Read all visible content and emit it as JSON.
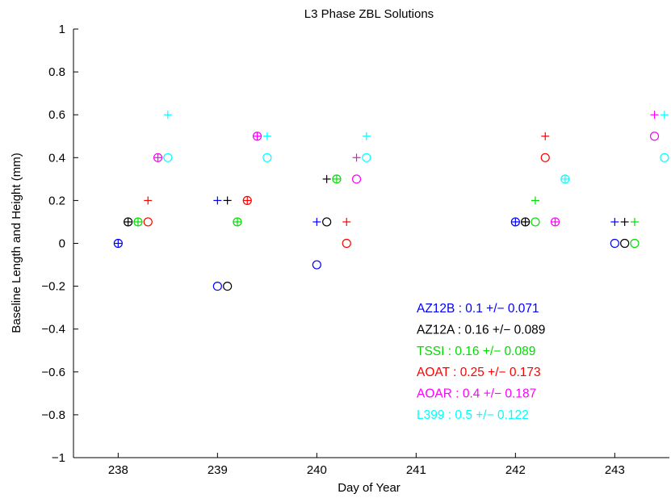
{
  "chart_data": {
    "type": "scatter",
    "title": "L3 Phase ZBL Solutions",
    "xlabel": "Day of Year",
    "ylabel": "Baseline Length and Height (mm)",
    "xlim": [
      237.55,
      243.55
    ],
    "ylim": [
      -1,
      1
    ],
    "xticks": [
      238,
      239,
      240,
      241,
      242,
      243
    ],
    "xtick_labels": [
      "238",
      "239",
      "240",
      "241",
      "242",
      "243"
    ],
    "yticks": [
      -1,
      -0.8,
      -0.6,
      -0.4,
      -0.2,
      0,
      0.2,
      0.4,
      0.6,
      0.8,
      1
    ],
    "ytick_labels": [
      "−1",
      "−0.8",
      "−0.6",
      "−0.4",
      "−0.2",
      "0",
      "0.2",
      "0.4",
      "0.6",
      "0.8",
      "1"
    ],
    "grid": false,
    "markers": {
      "plus": "+",
      "circle": "o"
    },
    "series": [
      {
        "name": "AZ12B",
        "color": "#0000ff",
        "plus": {
          "x": [
            238.0,
            239.0,
            240.0,
            242.0,
            243.0
          ],
          "y": [
            0.0,
            0.2,
            0.1,
            0.1,
            0.1
          ]
        },
        "circle": {
          "x": [
            238.0,
            239.0,
            240.0,
            242.0,
            243.0
          ],
          "y": [
            0.0,
            -0.2,
            -0.1,
            0.1,
            0.0
          ]
        }
      },
      {
        "name": "AZ12A",
        "color": "#000000",
        "plus": {
          "x": [
            238.1,
            239.1,
            240.1,
            242.1,
            243.1
          ],
          "y": [
            0.1,
            0.2,
            0.3,
            0.1,
            0.1
          ]
        },
        "circle": {
          "x": [
            238.1,
            239.1,
            240.1,
            242.1,
            243.1
          ],
          "y": [
            0.1,
            -0.2,
            0.1,
            0.1,
            0.0
          ]
        }
      },
      {
        "name": "TSSI",
        "color": "#00dd00",
        "plus": {
          "x": [
            238.2,
            239.2,
            240.2,
            242.2,
            243.2
          ],
          "y": [
            0.1,
            0.1,
            0.3,
            0.2,
            0.1
          ]
        },
        "circle": {
          "x": [
            238.2,
            239.2,
            240.2,
            242.2,
            243.2
          ],
          "y": [
            0.1,
            0.1,
            0.3,
            0.1,
            0.0
          ]
        }
      },
      {
        "name": "AOAT",
        "color": "#ff0000",
        "plus": {
          "x": [
            238.3,
            239.3,
            240.3,
            242.3
          ],
          "y": [
            0.2,
            0.2,
            0.1,
            0.5
          ]
        },
        "circle": {
          "x": [
            238.3,
            239.3,
            240.3,
            242.3
          ],
          "y": [
            0.1,
            0.2,
            0.0,
            0.4
          ]
        }
      },
      {
        "name": "AOAR",
        "color": "#ff00ff",
        "plus": {
          "x": [
            238.4,
            239.4,
            240.4,
            242.4,
            243.4
          ],
          "y": [
            0.4,
            0.5,
            0.4,
            0.1,
            0.6
          ]
        },
        "circle": {
          "x": [
            238.4,
            239.4,
            240.4,
            242.4,
            243.4
          ],
          "y": [
            0.4,
            0.5,
            0.3,
            0.1,
            0.5
          ]
        }
      },
      {
        "name": "L399",
        "color": "#00ffff",
        "plus": {
          "x": [
            238.5,
            239.5,
            240.5,
            242.5,
            243.5
          ],
          "y": [
            0.6,
            0.5,
            0.5,
            0.3,
            0.6
          ]
        },
        "circle": {
          "x": [
            238.5,
            239.5,
            240.5,
            242.5,
            243.5
          ],
          "y": [
            0.4,
            0.4,
            0.4,
            0.3,
            0.4
          ]
        }
      }
    ],
    "annotations": [
      {
        "text": "AZ12B : 0.1 +/− 0.071",
        "color": "#0000ff"
      },
      {
        "text": "AZ12A : 0.16 +/− 0.089",
        "color": "#000000"
      },
      {
        "text": "TSSI : 0.16 +/− 0.089",
        "color": "#00dd00"
      },
      {
        "text": "AOAT : 0.25 +/− 0.173",
        "color": "#ff0000"
      },
      {
        "text": "AOAR : 0.4 +/− 0.187",
        "color": "#ff00ff"
      },
      {
        "text": "L399 : 0.5 +/− 0.122",
        "color": "#00ffff"
      }
    ],
    "annotation_placement": "lower-right"
  }
}
